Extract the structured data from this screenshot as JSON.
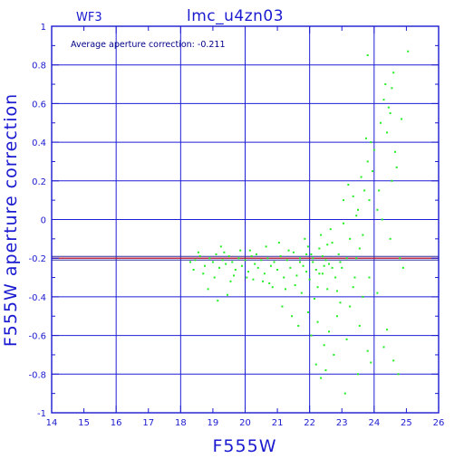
{
  "plot": {
    "chip": "WF3",
    "title": "lmc_u4zn03",
    "annotation": "Average aperture correction: -0.211"
  },
  "colors": {
    "axis": "#1a1ad0",
    "grid": "#1f1fd6",
    "points": "#22ee22",
    "mean_line": "#d01010",
    "background": "#ffffff"
  },
  "chart_data": {
    "type": "scatter",
    "title": "lmc_u4zn03",
    "xlabel": "F555W",
    "ylabel": "F555W aperture correction",
    "xlim": [
      14,
      26
    ],
    "ylim": [
      -1,
      1
    ],
    "x_ticks": [
      "14",
      "15",
      "16",
      "17",
      "18",
      "19",
      "20",
      "21",
      "22",
      "23",
      "24",
      "25",
      "26"
    ],
    "y_ticks": [
      "1",
      "0.8",
      "0.6",
      "0.4",
      "0.2",
      "0",
      "-0.2",
      "-0.4",
      "-0.6",
      "-0.8",
      "-1"
    ],
    "grid": true,
    "mean_correction": -0.211,
    "mean_line_y": -0.2,
    "series": [
      {
        "marker": "square",
        "points": [
          [
            18.45,
            -0.21
          ],
          [
            18.6,
            -0.19
          ],
          [
            18.75,
            -0.24
          ],
          [
            18.9,
            -0.2
          ],
          [
            19.0,
            -0.22
          ],
          [
            19.1,
            -0.18
          ],
          [
            19.2,
            -0.25
          ],
          [
            19.3,
            -0.21
          ],
          [
            19.4,
            -0.23
          ],
          [
            19.5,
            -0.19
          ],
          [
            19.6,
            -0.22
          ],
          [
            19.7,
            -0.26
          ],
          [
            19.8,
            -0.2
          ],
          [
            19.9,
            -0.24
          ],
          [
            20.0,
            -0.21
          ],
          [
            20.1,
            -0.27
          ],
          [
            20.2,
            -0.19
          ],
          [
            20.3,
            -0.23
          ],
          [
            20.4,
            -0.25
          ],
          [
            20.5,
            -0.21
          ],
          [
            20.6,
            -0.28
          ],
          [
            20.7,
            -0.2
          ],
          [
            20.8,
            -0.24
          ],
          [
            20.9,
            -0.22
          ],
          [
            21.0,
            -0.26
          ],
          [
            21.1,
            -0.19
          ],
          [
            21.2,
            -0.3
          ],
          [
            21.3,
            -0.21
          ],
          [
            21.4,
            -0.25
          ],
          [
            21.5,
            -0.17
          ],
          [
            21.6,
            -0.29
          ],
          [
            21.7,
            -0.22
          ],
          [
            21.8,
            -0.24
          ],
          [
            21.9,
            -0.18
          ],
          [
            22.0,
            -0.31
          ],
          [
            22.1,
            -0.2
          ],
          [
            22.2,
            -0.26
          ],
          [
            22.3,
            -0.15
          ],
          [
            22.4,
            -0.28
          ],
          [
            22.5,
            -0.21
          ],
          [
            22.6,
            -0.23
          ],
          [
            22.7,
            -0.12
          ],
          [
            22.8,
            -0.3
          ],
          [
            22.9,
            -0.18
          ],
          [
            23.0,
            -0.25
          ],
          [
            19.05,
            -0.3
          ],
          [
            19.55,
            -0.32
          ],
          [
            20.25,
            -0.31
          ],
          [
            20.75,
            -0.33
          ],
          [
            21.25,
            -0.36
          ],
          [
            21.75,
            -0.38
          ],
          [
            22.15,
            -0.41
          ],
          [
            22.55,
            -0.36
          ],
          [
            22.95,
            -0.43
          ],
          [
            23.35,
            -0.35
          ],
          [
            19.25,
            -0.14
          ],
          [
            20.15,
            -0.16
          ],
          [
            21.05,
            -0.12
          ],
          [
            21.85,
            -0.1
          ],
          [
            22.35,
            -0.08
          ],
          [
            22.65,
            -0.05
          ],
          [
            23.05,
            -0.02
          ],
          [
            23.45,
            0.02
          ],
          [
            18.85,
            -0.36
          ],
          [
            19.15,
            -0.42
          ],
          [
            19.45,
            -0.39
          ],
          [
            21.15,
            -0.45
          ],
          [
            21.45,
            -0.5
          ],
          [
            21.65,
            -0.55
          ],
          [
            21.95,
            -0.48
          ],
          [
            22.05,
            -0.6
          ],
          [
            22.25,
            -0.53
          ],
          [
            22.45,
            -0.65
          ],
          [
            22.6,
            -0.58
          ],
          [
            22.75,
            -0.7
          ],
          [
            22.85,
            -0.5
          ],
          [
            23.15,
            -0.62
          ],
          [
            23.55,
            -0.55
          ],
          [
            23.8,
            -0.68
          ],
          [
            23.25,
            -0.45
          ],
          [
            23.65,
            -0.4
          ],
          [
            23.85,
            -0.3
          ],
          [
            24.1,
            -0.38
          ],
          [
            22.2,
            -0.75
          ],
          [
            22.35,
            -0.82
          ],
          [
            22.5,
            -0.78
          ],
          [
            23.1,
            -0.9
          ],
          [
            23.5,
            -0.8
          ],
          [
            23.9,
            -0.74
          ],
          [
            24.3,
            -0.66
          ],
          [
            24.6,
            -0.73
          ],
          [
            24.75,
            -0.8
          ],
          [
            24.4,
            -0.57
          ],
          [
            23.05,
            0.1
          ],
          [
            23.2,
            0.18
          ],
          [
            23.35,
            0.12
          ],
          [
            23.5,
            0.05
          ],
          [
            23.6,
            0.22
          ],
          [
            23.7,
            0.15
          ],
          [
            23.8,
            0.3
          ],
          [
            23.9,
            0.4
          ],
          [
            23.75,
            0.42
          ],
          [
            24.0,
            0.36
          ],
          [
            23.95,
            0.25
          ],
          [
            23.85,
            0.1
          ],
          [
            24.1,
            0.05
          ],
          [
            24.2,
            0.5
          ],
          [
            24.3,
            0.62
          ],
          [
            24.4,
            0.45
          ],
          [
            24.5,
            0.55
          ],
          [
            24.35,
            0.7
          ],
          [
            24.55,
            0.68
          ],
          [
            24.6,
            0.76
          ],
          [
            24.45,
            0.58
          ],
          [
            24.65,
            0.35
          ],
          [
            24.55,
            0.2
          ],
          [
            24.7,
            0.27
          ],
          [
            24.85,
            0.52
          ],
          [
            25.05,
            0.87
          ],
          [
            23.8,
            0.85
          ],
          [
            24.15,
            0.15
          ],
          [
            24.25,
            0.0
          ],
          [
            24.5,
            -0.1
          ],
          [
            24.8,
            -0.2
          ],
          [
            24.9,
            -0.25
          ],
          [
            23.55,
            -0.15
          ],
          [
            23.65,
            -0.08
          ],
          [
            23.45,
            -0.2
          ],
          [
            18.3,
            -0.22
          ],
          [
            18.4,
            -0.26
          ],
          [
            18.55,
            -0.17
          ],
          [
            18.7,
            -0.28
          ],
          [
            19.35,
            -0.17
          ],
          [
            19.65,
            -0.29
          ],
          [
            19.85,
            -0.16
          ],
          [
            20.05,
            -0.3
          ],
          [
            20.35,
            -0.18
          ],
          [
            20.55,
            -0.32
          ],
          [
            20.65,
            -0.14
          ],
          [
            20.85,
            -0.35
          ],
          [
            21.35,
            -0.16
          ],
          [
            21.55,
            -0.34
          ],
          [
            21.95,
            -0.14
          ],
          [
            22.25,
            -0.35
          ],
          [
            22.55,
            -0.13
          ],
          [
            22.85,
            -0.37
          ],
          [
            23.25,
            -0.1
          ],
          [
            23.4,
            -0.3
          ],
          [
            22.1,
            -0.22
          ],
          [
            22.4,
            -0.19
          ],
          [
            22.7,
            -0.25
          ],
          [
            21.9,
            -0.27
          ],
          [
            21.7,
            -0.2
          ],
          [
            22.3,
            -0.28
          ],
          [
            22.95,
            -0.22
          ],
          [
            23.15,
            -0.2
          ],
          [
            22.45,
            -0.24
          ],
          [
            22.05,
            -0.18
          ]
        ]
      }
    ]
  }
}
